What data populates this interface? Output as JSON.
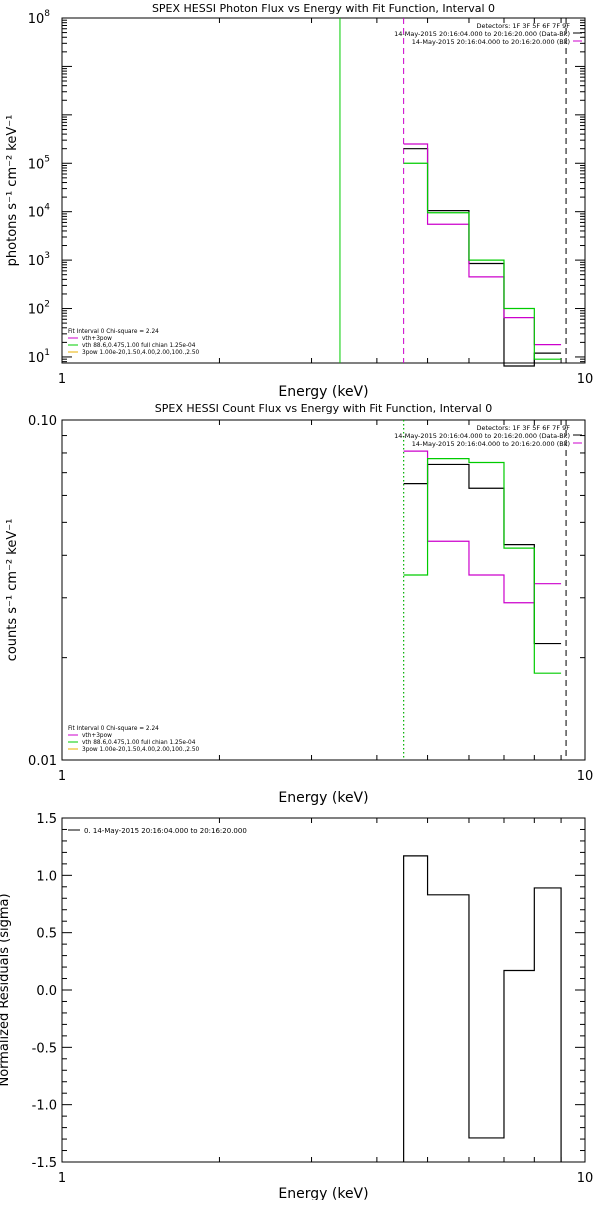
{
  "chart_data": [
    {
      "type": "line",
      "title": "SPEX HESSI Photon Flux vs Energy with Fit Function, Interval 0",
      "xlabel": "Energy (keV)",
      "ylabel": "photons s⁻¹ cm⁻² keV⁻¹",
      "xscale": "log",
      "yscale": "log",
      "xlim": [
        1,
        10
      ],
      "ylim": [
        7.5,
        100000000
      ],
      "xticks": [
        {
          "v": 1,
          "label": "1"
        },
        {
          "v": 10,
          "label": "10"
        }
      ],
      "yticks": [
        {
          "v": 10,
          "base": "10",
          "exp": "1"
        },
        {
          "v": 100,
          "base": "10",
          "exp": "2"
        },
        {
          "v": 1000,
          "base": "10",
          "exp": "3"
        },
        {
          "v": 10000,
          "base": "10",
          "exp": "4"
        },
        {
          "v": 100000,
          "base": "10",
          "exp": "5"
        },
        {
          "v": 100000000,
          "base": "10",
          "exp": "8"
        }
      ],
      "legend_top": {
        "position": "top-right",
        "lines": [
          {
            "text": "Detectors: 1F 3F 5F 6F 7F 9F",
            "color": ""
          },
          {
            "text": "14-May-2015 20:16:04.000 to 20:16:20.000 (Data-Bk)",
            "color": "#000000"
          },
          {
            "text": "14-May-2015 20:16:04.000 to 20:16:20.000 (Bk)",
            "color": "#cc00cc"
          }
        ]
      },
      "legend_bottom": {
        "position": "bottom-left",
        "lines": [
          {
            "text": "Fit Interval 0   Chi-square = 2.24",
            "color": ""
          },
          {
            "text": "vth+3pow",
            "color": "#cc00cc"
          },
          {
            "text": "vth 88.6,0.475,1.00  full chian 1.25e-04",
            "color": "#00cc00"
          },
          {
            "text": "3pow 1.00e-20,1.50,4.00,2.00,100.,2.50",
            "color": "#e8b000"
          }
        ]
      },
      "vlines": [
        {
          "x": 3.4,
          "color": "#00cc00",
          "dash": "solid"
        },
        {
          "x": 4.5,
          "color": "#cc00cc",
          "dash": "dashed"
        },
        {
          "x": 9.2,
          "color": "#000000",
          "dash": "dashed"
        }
      ],
      "series": [
        {
          "name": "14-May-2015 20:16:04.000 to 20:16:20.000 (Data-Bk)",
          "color": "#000000",
          "edges": [
            4.5,
            5.0,
            6.0,
            7.0,
            8.0,
            9.0
          ],
          "values": [
            200000,
            10500,
            850,
            6.5,
            12
          ]
        },
        {
          "name": "14-May-2015 20:16:04.000 to 20:16:20.000 (Bk)",
          "color": "#cc00cc",
          "edges": [
            4.5,
            5.0,
            6.0,
            7.0,
            8.0,
            9.0
          ],
          "values": [
            250000,
            5500,
            450,
            65,
            18
          ]
        },
        {
          "name": "vth+3pow",
          "color": "#00cc00",
          "edges": [
            4.5,
            5.0,
            6.0,
            7.0,
            8.0,
            9.0
          ],
          "values": [
            100000,
            9500,
            1000,
            100,
            9
          ]
        }
      ]
    },
    {
      "type": "line",
      "title": "SPEX HESSI Count Flux vs Energy with Fit Function, Interval 0",
      "xlabel": "Energy (keV)",
      "ylabel": "counts s⁻¹ cm⁻² keV⁻¹",
      "xscale": "log",
      "yscale": "log",
      "xlim": [
        1,
        10
      ],
      "ylim": [
        0.01,
        0.1
      ],
      "xticks": [
        {
          "v": 1,
          "label": "1"
        },
        {
          "v": 10,
          "label": "10"
        }
      ],
      "yticks": [
        {
          "v": 0.01,
          "label": "0.01"
        },
        {
          "v": 0.1,
          "label": "0.10"
        }
      ],
      "legend_top": {
        "position": "top-right",
        "lines": [
          {
            "text": "Detectors: 1F 3F 5F 6F 7F 9F",
            "color": ""
          },
          {
            "text": "14-May-2015 20:16:04.000 to 20:16:20.000 (Data-Bk)",
            "color": "#000000"
          },
          {
            "text": "14-May-2015 20:16:04.000 to 20:16:20.000 (Bk)",
            "color": "#cc00cc"
          }
        ]
      },
      "legend_bottom": {
        "position": "bottom-left",
        "lines": [
          {
            "text": "Fit Interval 0   Chi-square = 2.24",
            "color": ""
          },
          {
            "text": "vth+3pow",
            "color": "#cc00cc"
          },
          {
            "text": "vth 88.6,0.475,1.00  full chian 1.25e-04",
            "color": "#00cc00"
          },
          {
            "text": "3pow 1.00e-20,1.50,4.00,2.00,100.,2.50",
            "color": "#e8b000"
          }
        ]
      },
      "vlines": [
        {
          "x": 4.5,
          "color": "#000000",
          "dash": "dotted"
        },
        {
          "x": 4.5,
          "color": "#00cc00",
          "dash": "dotted"
        },
        {
          "x": 9.2,
          "color": "#000000",
          "dash": "dashed"
        }
      ],
      "series": [
        {
          "name": "14-May-2015 20:16:04.000 to 20:16:20.000 (Data-Bk)",
          "color": "#000000",
          "edges": [
            4.5,
            5.0,
            6.0,
            7.0,
            8.0,
            9.0
          ],
          "values": [
            0.065,
            0.074,
            0.063,
            0.043,
            0.022
          ]
        },
        {
          "name": "14-May-2015 20:16:04.000 to 20:16:20.000 (Bk)",
          "color": "#cc00cc",
          "edges": [
            4.5,
            5.0,
            6.0,
            7.0,
            8.0,
            9.0
          ],
          "values": [
            0.081,
            0.044,
            0.035,
            0.029,
            0.033
          ]
        },
        {
          "name": "vth+3pow",
          "color": "#00cc00",
          "edges": [
            4.5,
            5.0,
            6.0,
            7.0,
            8.0,
            9.0
          ],
          "values": [
            0.035,
            0.077,
            0.075,
            0.042,
            0.018
          ]
        }
      ]
    },
    {
      "type": "line",
      "title": "",
      "xlabel": "Energy (keV)",
      "ylabel": "Normalized Residuals (sigma)",
      "xscale": "log",
      "yscale": "linear",
      "xlim": [
        1,
        10
      ],
      "ylim": [
        -1.5,
        1.5
      ],
      "xticks": [
        {
          "v": 1,
          "label": "1"
        },
        {
          "v": 10,
          "label": "10"
        }
      ],
      "yticks": [
        {
          "v": 1.5,
          "label": "1.5"
        },
        {
          "v": 1.0,
          "label": "1.0"
        },
        {
          "v": 0.5,
          "label": "0.5"
        },
        {
          "v": 0.0,
          "label": "0.0"
        },
        {
          "v": -0.5,
          "label": "-0.5"
        },
        {
          "v": -1.0,
          "label": "-1.0"
        },
        {
          "v": -1.5,
          "label": "-1.5"
        }
      ],
      "legend_top": {
        "position": "top-left",
        "lines": [
          {
            "text": "0. 14-May-2015 20:16:04.000 to 20:16:20.000",
            "color": "#000000"
          }
        ]
      },
      "legend_bottom": {
        "position": "bottom-left",
        "lines": []
      },
      "vlines": [],
      "series": [
        {
          "name": "0. 14-May-2015 20:16:04.000 to 20:16:20.000",
          "color": "#000000",
          "edges": [
            4.5,
            5.0,
            6.0,
            7.0,
            8.0,
            9.0
          ],
          "values": [
            1.17,
            0.83,
            -1.29,
            0.17,
            0.89
          ],
          "baseline": -1.5
        }
      ]
    }
  ]
}
